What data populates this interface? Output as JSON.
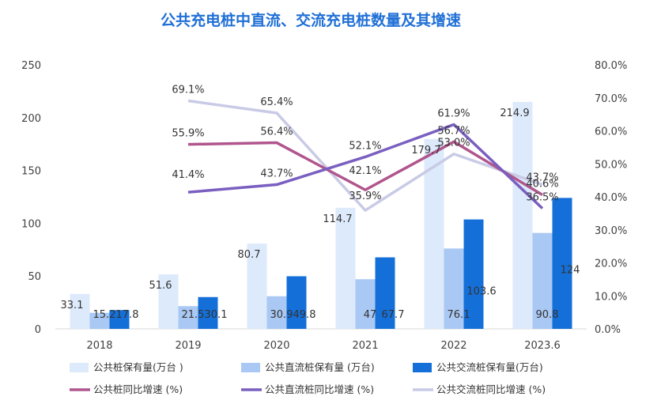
{
  "chart_data": {
    "type": "bar",
    "title": "公共充电桩中直流、交流充电桩数量及其增速",
    "categories": [
      "2018",
      "2019",
      "2020",
      "2021",
      "2022",
      "2023.6"
    ],
    "y_left": {
      "min": 0,
      "max": 250,
      "ticks": [
        "0",
        "50",
        "100",
        "150",
        "200",
        "250"
      ]
    },
    "y_right": {
      "min": 0,
      "max": 80,
      "ticks": [
        "0.0%",
        "10.0%",
        "20.0%",
        "30.0%",
        "40.0%",
        "50.0%",
        "60.0%",
        "70.0%",
        "80.0%"
      ]
    },
    "bar_series": [
      {
        "name": "公共桩保有量(万台 )",
        "color": "#ddeafb",
        "values": [
          33.1,
          51.6,
          80.7,
          114.7,
          179.7,
          214.9
        ],
        "labels": [
          "33.1",
          "51.6",
          "80.7",
          "114.7",
          "179.7",
          "214.9"
        ]
      },
      {
        "name": "公共直流桩保有量 (万台)",
        "color": "#a9c8f3",
        "values": [
          15.2,
          21.5,
          30.9,
          47,
          76.1,
          90.8
        ],
        "labels": [
          "15.2",
          "21.5",
          "30.9",
          "47",
          "76.1",
          "90.8"
        ]
      },
      {
        "name": "公共交流桩保有量(万台)",
        "color": "#1470d8",
        "values": [
          17.8,
          30.1,
          49.8,
          67.7,
          103.6,
          124
        ],
        "labels": [
          "17.8",
          "30.1",
          "49.8",
          "67.7",
          "103.6",
          "124"
        ]
      }
    ],
    "line_series": [
      {
        "name": "公共桩同比增速 (%)",
        "color": "#b0558d",
        "values": [
          null,
          55.9,
          56.4,
          42.1,
          56.7,
          40.6
        ],
        "labels": [
          "",
          "55.9%",
          "56.4%",
          "42.1%",
          "56.7%",
          "40.6%"
        ]
      },
      {
        "name": "公共直流桩同比增速 (%)",
        "color": "#7a5fc0",
        "values": [
          null,
          41.4,
          43.7,
          52.1,
          61.9,
          36.5
        ],
        "labels": [
          "",
          "41.4%",
          "43.7%",
          "52.1%",
          "61.9%",
          "36.5%"
        ]
      },
      {
        "name": "公共交流桩同比增速 (%)",
        "color": "#c9cbe6",
        "values": [
          null,
          69.1,
          65.4,
          35.9,
          53.0,
          43.7
        ],
        "labels": [
          "",
          "69.1%",
          "65.4%",
          "35.9%",
          "53.0%",
          "43.7%"
        ]
      }
    ],
    "legend_position": "bottom"
  }
}
